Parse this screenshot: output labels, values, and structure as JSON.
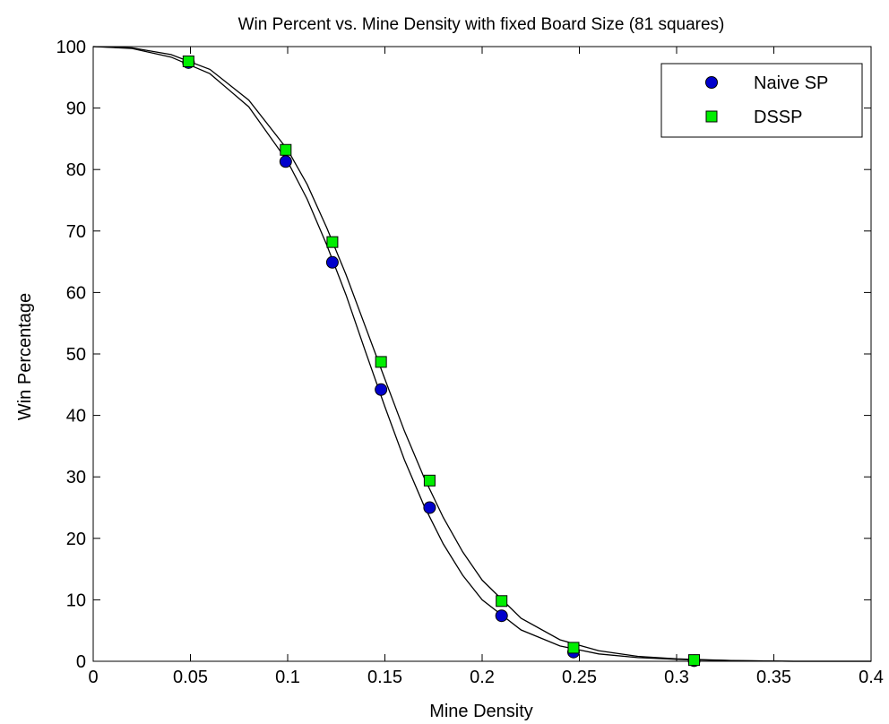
{
  "chart_data": {
    "type": "scatter",
    "title": "Win Percent vs. Mine Density with fixed Board Size (81 squares)",
    "xlabel": "Mine Density",
    "ylabel": "Win Percentage",
    "xlim": [
      0,
      0.4
    ],
    "ylim": [
      0,
      100
    ],
    "xticks": [
      "0",
      "0.05",
      "0.1",
      "0.15",
      "0.2",
      "0.25",
      "0.3",
      "0.35",
      "0.4"
    ],
    "yticks": [
      "0",
      "10",
      "20",
      "30",
      "40",
      "50",
      "60",
      "70",
      "80",
      "90",
      "100"
    ],
    "grid": false,
    "legend": "top-right",
    "series": [
      {
        "name": "Naive SP",
        "marker": "circle",
        "color": "#0000cc",
        "points": [
          [
            0.049,
            97.4
          ],
          [
            0.099,
            81.3
          ],
          [
            0.123,
            64.9
          ],
          [
            0.148,
            44.2
          ],
          [
            0.173,
            25.0
          ],
          [
            0.21,
            7.4
          ],
          [
            0.247,
            1.5
          ],
          [
            0.309,
            0.1
          ]
        ]
      },
      {
        "name": "DSSP",
        "marker": "square",
        "color": "#00ee00",
        "points": [
          [
            0.049,
            97.6
          ],
          [
            0.099,
            83.2
          ],
          [
            0.123,
            68.2
          ],
          [
            0.148,
            48.7
          ],
          [
            0.173,
            29.4
          ],
          [
            0.21,
            9.8
          ],
          [
            0.247,
            2.2
          ],
          [
            0.309,
            0.2
          ]
        ]
      }
    ],
    "fit_curves": [
      {
        "fit_for": "Naive SP",
        "color": "#000000",
        "points": [
          [
            0.0,
            100.0
          ],
          [
            0.02,
            99.7
          ],
          [
            0.04,
            98.3
          ],
          [
            0.06,
            95.6
          ],
          [
            0.08,
            90.2
          ],
          [
            0.1,
            81.3
          ],
          [
            0.11,
            75.2
          ],
          [
            0.12,
            67.8
          ],
          [
            0.13,
            59.6
          ],
          [
            0.14,
            50.4
          ],
          [
            0.15,
            41.4
          ],
          [
            0.16,
            32.8
          ],
          [
            0.17,
            25.4
          ],
          [
            0.18,
            19.1
          ],
          [
            0.19,
            14.0
          ],
          [
            0.2,
            10.0
          ],
          [
            0.22,
            5.1
          ],
          [
            0.24,
            2.5
          ],
          [
            0.26,
            1.2
          ],
          [
            0.28,
            0.6
          ],
          [
            0.3,
            0.3
          ],
          [
            0.33,
            0.1
          ],
          [
            0.36,
            0.0
          ],
          [
            0.4,
            0.0
          ]
        ]
      },
      {
        "fit_for": "DSSP",
        "color": "#000000",
        "points": [
          [
            0.0,
            100.0
          ],
          [
            0.02,
            99.8
          ],
          [
            0.04,
            98.7
          ],
          [
            0.06,
            96.3
          ],
          [
            0.08,
            91.3
          ],
          [
            0.1,
            83.2
          ],
          [
            0.11,
            77.6
          ],
          [
            0.12,
            70.6
          ],
          [
            0.13,
            62.9
          ],
          [
            0.14,
            54.4
          ],
          [
            0.15,
            45.9
          ],
          [
            0.16,
            37.5
          ],
          [
            0.17,
            30.0
          ],
          [
            0.18,
            23.4
          ],
          [
            0.19,
            17.8
          ],
          [
            0.2,
            13.2
          ],
          [
            0.22,
            7.0
          ],
          [
            0.24,
            3.5
          ],
          [
            0.26,
            1.7
          ],
          [
            0.28,
            0.8
          ],
          [
            0.3,
            0.4
          ],
          [
            0.33,
            0.1
          ],
          [
            0.36,
            0.0
          ],
          [
            0.4,
            0.0
          ]
        ]
      }
    ]
  }
}
